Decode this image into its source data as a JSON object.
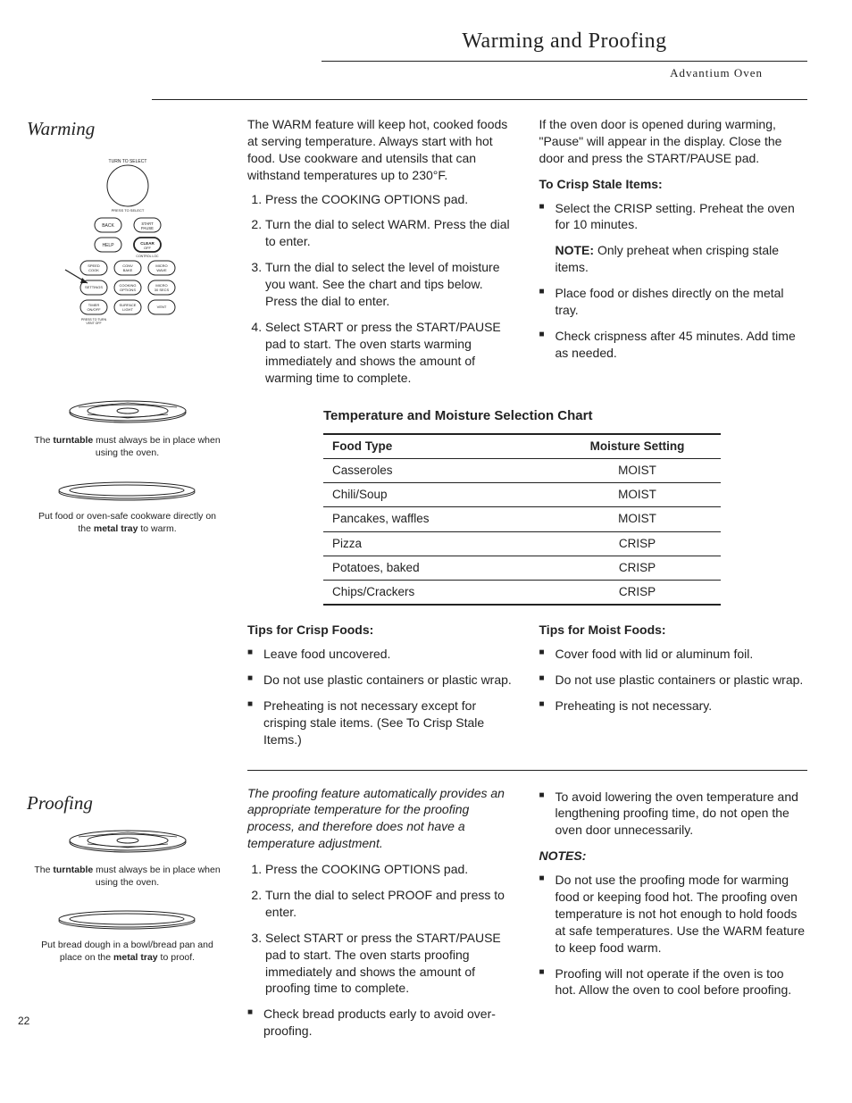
{
  "header": {
    "title": "Warming and Proofing",
    "subtitle": "Advantium Oven"
  },
  "warming": {
    "heading": "Warming",
    "sidebar": {
      "panel_buttons": {
        "top_label": "TURN TO SELECT",
        "rows": [
          [
            "BACK",
            "START\nPAUSE"
          ],
          [
            "HELP",
            "CLEAR\nOFF"
          ],
          [
            "SPEED\nCOOK",
            "CONV\nBAKE",
            "MICRO\nWAVE"
          ],
          [
            "SETTINGS",
            "COOKING\nOPTIONS",
            "MICRO\n30 SECS"
          ],
          [
            "TIMER\nON/OFF",
            "SURFACE\nLIGHT",
            "VENT"
          ]
        ],
        "bottom_label": "PRESS TO TURN\nVENT OFF"
      },
      "caption1_pre": "The ",
      "caption1_bold": "turntable",
      "caption1_post": " must always be in place when using the oven.",
      "caption2_pre": "Put food or oven-safe cookware directly on the ",
      "caption2_bold": "metal tray",
      "caption2_post": " to warm."
    },
    "intro": "The WARM feature will keep hot, cooked foods at serving temperature. Always start with hot food. Use cookware and utensils that can withstand temperatures up to 230°F.",
    "steps": [
      "Press the COOKING OPTIONS pad.",
      "Turn the dial to select WARM. Press the dial to enter.",
      "Turn the dial to select the level of moisture you want. See the chart and tips below. Press the dial to enter.",
      "Select START or press the START/PAUSE pad to start.  The oven starts warming immediately and shows the amount of warming time to complete."
    ],
    "right": {
      "pause_note": "If the oven door is opened during warming, \"Pause\" will appear in the display. Close the door and press the START/PAUSE pad.",
      "crisp_head": "To Crisp Stale Items:",
      "crisp_items": [
        "Select the CRISP setting. Preheat the oven for 10 minutes."
      ],
      "note_label": "NOTE:",
      "note_text": "  Only preheat when crisping stale items.",
      "crisp_items2": [
        "Place food or dishes directly on the metal tray.",
        "Check crispness after 45 minutes. Add time as needed."
      ]
    },
    "chart": {
      "title": "Temperature and Moisture Selection Chart",
      "col1": "Food Type",
      "col2": "Moisture Setting",
      "rows": [
        [
          "Casseroles",
          "MOIST"
        ],
        [
          "Chili/Soup",
          "MOIST"
        ],
        [
          "Pancakes, waffles",
          "MOIST"
        ],
        [
          "Pizza",
          "CRISP"
        ],
        [
          "Potatoes, baked",
          "CRISP"
        ],
        [
          "Chips/Crackers",
          "CRISP"
        ]
      ]
    },
    "tips_crisp": {
      "head": "Tips for Crisp Foods:",
      "items": [
        "Leave food uncovered.",
        "Do not use plastic containers or plastic wrap.",
        "Preheating is not necessary except for crisping stale items. (See To Crisp Stale Items.)"
      ]
    },
    "tips_moist": {
      "head": "Tips for Moist Foods:",
      "items": [
        "Cover food with lid or aluminum foil.",
        "Do not use plastic containers or plastic wrap.",
        "Preheating is not necessary."
      ]
    }
  },
  "proofing": {
    "heading": "Proofing",
    "sidebar": {
      "caption1_pre": "The ",
      "caption1_bold": "turntable",
      "caption1_post": " must always be in place when using the oven.",
      "caption2_pre": "Put bread dough in a bowl/bread pan and place on the ",
      "caption2_bold": "metal tray",
      "caption2_post": " to proof."
    },
    "intro": "The proofing feature automatically provides an appropriate temperature for the proofing process, and therefore does not have a temperature adjustment.",
    "steps": [
      "Press the COOKING OPTIONS pad.",
      "Turn the dial to select PROOF and press to enter.",
      "Select START or press the START/PAUSE pad to start.  The oven starts proofing immediately and shows the amount of proofing time to complete."
    ],
    "left_bullets": [
      "Check bread products early to avoid over-proofing."
    ],
    "right_bullets_top": [
      "To avoid lowering the oven temperature and lengthening proofing time, do not open the oven door unnecessarily."
    ],
    "notes_head": "NOTES:",
    "notes": [
      "Do not use the proofing mode for warming food or keeping food hot. The proofing oven temperature is not hot enough to hold foods at safe temperatures. Use the WARM feature to keep food warm.",
      "Proofing will not operate if the oven is too hot. Allow the oven to cool before proofing."
    ]
  },
  "page_number": "22"
}
